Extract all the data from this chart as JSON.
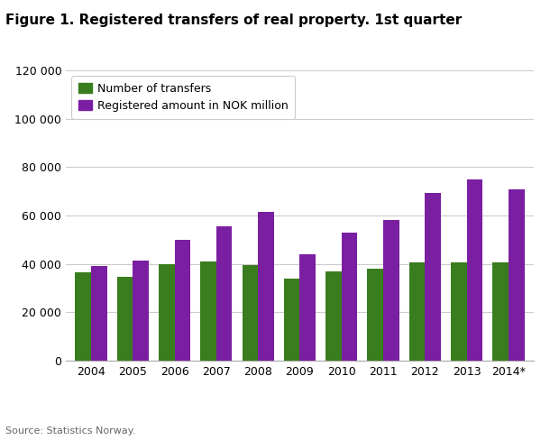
{
  "title": "Figure 1. Registered transfers of real property. 1st quarter",
  "categories": [
    "2004",
    "2005",
    "2006",
    "2007",
    "2008",
    "2009",
    "2010",
    "2011",
    "2012",
    "2013",
    "2014*"
  ],
  "transfers": [
    36500,
    34800,
    40000,
    41000,
    39500,
    34000,
    37000,
    38000,
    40500,
    40500,
    40500
  ],
  "amounts": [
    39000,
    41500,
    50000,
    55500,
    61500,
    44000,
    53000,
    58000,
    69500,
    75000,
    71000
  ],
  "bar_color_transfers": "#3a7d1e",
  "bar_color_amounts": "#7b1fa2",
  "legend_labels": [
    "Number of transfers",
    "Registered amount in NOK million"
  ],
  "ylim": [
    0,
    120000
  ],
  "yticks": [
    0,
    20000,
    40000,
    60000,
    80000,
    100000,
    120000
  ],
  "ytick_labels": [
    "0",
    "20 000",
    "40 000",
    "60 000",
    "80 000",
    "100 000",
    "120 000"
  ],
  "source": "Source: Statistics Norway.",
  "background_color": "#ffffff",
  "grid_color": "#cccccc",
  "title_fontsize": 11,
  "label_fontsize": 9,
  "tick_fontsize": 9,
  "source_fontsize": 8,
  "bar_width": 0.38
}
